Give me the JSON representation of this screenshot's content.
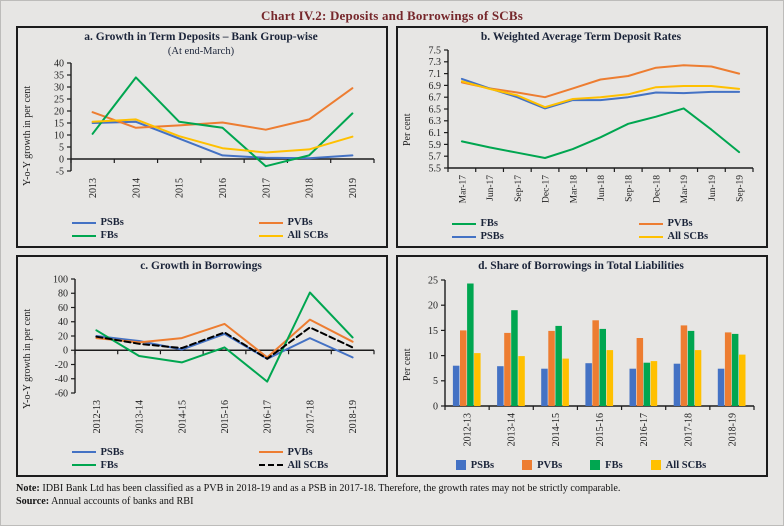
{
  "page": {
    "title": "Chart IV.2: Deposits and Borrowings of SCBs",
    "note_label": "Note:",
    "note_text": " IDBI Bank Ltd has been classified as a PVB in 2018-19 and as a PSB in 2017-18. Therefore, the growth rates may not be strictly comparable.",
    "source_label": "Source:",
    "source_text": " Annual accounts of banks and RBI"
  },
  "colors": {
    "psb_blue": "#4472c4",
    "pvb_orange": "#ed7d31",
    "fb_green": "#00a650",
    "all_scb_yellow": "#ffc000",
    "all_scb_black": "#000000",
    "title_red": "#76272b",
    "panel_title_navy": "#1b2439"
  },
  "chart_data": [
    {
      "id": "a",
      "type": "line",
      "title": "a. Growth in Term Deposits – Bank Group-wise",
      "subtitle": "(At end-March)",
      "ylabel": "Y-o-Y growth in per cent",
      "categories": [
        "2013",
        "2014",
        "2015",
        "2016",
        "2017",
        "2018",
        "2019"
      ],
      "ylim": [
        -5,
        40
      ],
      "yticks": [
        "40",
        "35",
        "30",
        "25",
        "20",
        "15",
        "10",
        "5",
        "0",
        "-5"
      ],
      "grid": false,
      "legend_position": "bottom",
      "series": [
        {
          "name": "PSBs",
          "color": "#4472c4",
          "dash": false,
          "values": [
            15,
            15.5,
            8.5,
            1.5,
            0.5,
            0.3,
            1.5
          ]
        },
        {
          "name": "PVBs",
          "color": "#ed7d31",
          "dash": false,
          "values": [
            19.5,
            13,
            14,
            15.2,
            12.2,
            16.5,
            29.5
          ]
        },
        {
          "name": "FBs",
          "color": "#00a650",
          "dash": false,
          "values": [
            10.5,
            34,
            15.5,
            13,
            -3,
            1.5,
            19
          ]
        },
        {
          "name": "All SCBs",
          "color": "#ffc000",
          "dash": false,
          "values": [
            15.5,
            16.5,
            9.5,
            4.5,
            2.7,
            4,
            9.3
          ]
        }
      ],
      "legend": [
        "PSBs",
        "PVBs",
        "FBs",
        "All SCBs"
      ]
    },
    {
      "id": "b",
      "type": "line",
      "title": "b. Weighted Average Term Deposit Rates",
      "ylabel": "Per cent",
      "categories": [
        "Mar-17",
        "Jun-17",
        "Sep-17",
        "Dec-17",
        "Mar-18",
        "Jun-18",
        "Sep-18",
        "Dec-18",
        "Mar-19",
        "Jun-19",
        "Sep-19"
      ],
      "ylim": [
        5.5,
        7.5
      ],
      "yticks": [
        "7.5",
        "7.3",
        "7.1",
        "6.9",
        "6.7",
        "6.5",
        "6.3",
        "6.1",
        "5.9",
        "5.7",
        "5.5"
      ],
      "grid": false,
      "legend_position": "bottom",
      "series": [
        {
          "name": "FBs",
          "color": "#00a650",
          "dash": false,
          "values": [
            5.95,
            5.85,
            5.76,
            5.67,
            5.82,
            6.02,
            6.25,
            6.37,
            6.51,
            6.15,
            5.77
          ]
        },
        {
          "name": "PVBs",
          "color": "#ed7d31",
          "dash": false,
          "values": [
            6.95,
            6.85,
            6.78,
            6.7,
            6.85,
            7.0,
            7.06,
            7.2,
            7.24,
            7.22,
            7.1
          ]
        },
        {
          "name": "PSBs",
          "color": "#4472c4",
          "dash": false,
          "values": [
            7.01,
            6.85,
            6.7,
            6.51,
            6.65,
            6.65,
            6.7,
            6.78,
            6.77,
            6.79,
            6.79
          ]
        },
        {
          "name": "All SCBs",
          "color": "#ffc000",
          "dash": false,
          "values": [
            6.97,
            6.84,
            6.73,
            6.53,
            6.67,
            6.7,
            6.75,
            6.87,
            6.89,
            6.89,
            6.84
          ]
        }
      ],
      "legend": [
        "FBs",
        "PVBs",
        "PSBs",
        "All SCBs"
      ]
    },
    {
      "id": "c",
      "type": "line",
      "title": "c. Growth in Borrowings",
      "ylabel": "Y-o-Y growth in per cent",
      "categories": [
        "2012-13",
        "2013-14",
        "2014-15",
        "2015-16",
        "2016-17",
        "2017-18",
        "2018-19"
      ],
      "ylim": [
        -60,
        100
      ],
      "yticks": [
        "100",
        "80",
        "60",
        "40",
        "20",
        "0",
        "-20",
        "-40",
        "-60"
      ],
      "grid": false,
      "legend_position": "bottom",
      "series": [
        {
          "name": "PSBs",
          "color": "#4472c4",
          "dash": false,
          "values": [
            20,
            13,
            1,
            23,
            -12,
            17,
            -10
          ]
        },
        {
          "name": "PVBs",
          "color": "#ed7d31",
          "dash": false,
          "values": [
            17,
            11,
            17,
            37,
            -10,
            43,
            12
          ]
        },
        {
          "name": "FBs",
          "color": "#00a650",
          "dash": false,
          "values": [
            28,
            -8,
            -17,
            4,
            -44,
            81,
            18
          ]
        },
        {
          "name": "All SCBs",
          "color": "#000000",
          "dash": true,
          "values": [
            19,
            9,
            3,
            25,
            -12,
            32,
            4
          ]
        }
      ],
      "legend": [
        "PSBs",
        "PVBs",
        "FBs",
        "All SCBs"
      ]
    },
    {
      "id": "d",
      "type": "bar",
      "title": "d. Share of Borrowings in Total Liabilities",
      "ylabel": "Per cent",
      "categories": [
        "2012-13",
        "2013-14",
        "2014-15",
        "2015-16",
        "2016-17",
        "2017-18",
        "2018-19"
      ],
      "ylim": [
        0,
        25
      ],
      "yticks": [
        "25",
        "20",
        "15",
        "10",
        "5",
        "0"
      ],
      "grid": false,
      "legend_position": "bottom",
      "series": [
        {
          "name": "PSBs",
          "color": "#4472c4",
          "values": [
            8.0,
            7.9,
            7.4,
            8.5,
            7.4,
            8.4,
            7.4
          ]
        },
        {
          "name": "PVBs",
          "color": "#ed7d31",
          "values": [
            15.0,
            14.5,
            14.9,
            17.0,
            13.5,
            16.0,
            14.6
          ]
        },
        {
          "name": "FBs",
          "color": "#00a650",
          "values": [
            24.3,
            19.0,
            15.9,
            15.3,
            8.6,
            14.9,
            14.3
          ]
        },
        {
          "name": "All SCBs",
          "color": "#ffc000",
          "values": [
            10.5,
            9.9,
            9.4,
            11.1,
            8.9,
            11.1,
            10.2
          ]
        }
      ],
      "legend": [
        "PSBs",
        "PVBs",
        "FBs",
        "All SCBs"
      ]
    }
  ]
}
